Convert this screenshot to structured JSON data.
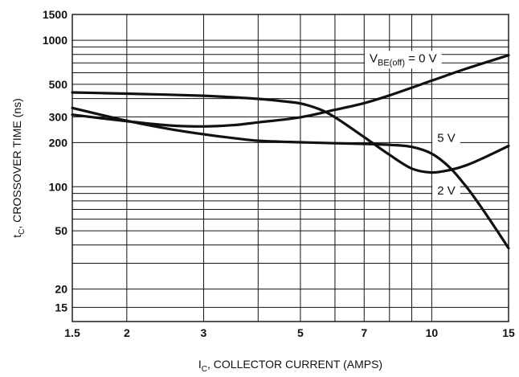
{
  "chart_data": {
    "type": "line",
    "x_scale": "log",
    "y_scale": "log",
    "xlim": [
      1.5,
      15
    ],
    "ylim": [
      12,
      1500
    ],
    "grid": true,
    "xlabel": {
      "main": "I",
      "sub": "C",
      "rest": ", COLLECTOR CURRENT (AMPS)"
    },
    "ylabel": {
      "main": "t",
      "sub": "C",
      "rest": ", CROSSOVER TIME (ns)"
    },
    "x_ticks": [
      {
        "value": 1.5,
        "label": "1.5"
      },
      {
        "value": 2,
        "label": "2"
      },
      {
        "value": 3,
        "label": "3"
      },
      {
        "value": 5,
        "label": "5"
      },
      {
        "value": 7,
        "label": "7"
      },
      {
        "value": 10,
        "label": "10"
      },
      {
        "value": 15,
        "label": "15"
      }
    ],
    "y_ticks": [
      {
        "value": 15,
        "label": "15"
      },
      {
        "value": 20,
        "label": "20"
      },
      {
        "value": 50,
        "label": "50"
      },
      {
        "value": 100,
        "label": "100"
      },
      {
        "value": 200,
        "label": "200"
      },
      {
        "value": 300,
        "label": "300"
      },
      {
        "value": 500,
        "label": "500"
      },
      {
        "value": 1000,
        "label": "1000"
      },
      {
        "value": 1500,
        "label": "1500"
      }
    ],
    "x_grid": [
      1.5,
      2,
      3,
      4,
      5,
      6,
      7,
      8,
      9,
      10,
      15
    ],
    "y_grid": [
      15,
      20,
      30,
      40,
      50,
      60,
      70,
      80,
      90,
      100,
      200,
      300,
      400,
      500,
      600,
      700,
      800,
      900,
      1000,
      1500
    ],
    "series": [
      {
        "label_parts": {
          "main": "V",
          "sub": "BE(off)",
          "rest": " = 0 V"
        },
        "label_at": {
          "x": 8.6,
          "y": 755
        },
        "points": [
          [
            1.5,
            310
          ],
          [
            2,
            280
          ],
          [
            2.5,
            262
          ],
          [
            3,
            258
          ],
          [
            3.5,
            263
          ],
          [
            4,
            275
          ],
          [
            5,
            298
          ],
          [
            6,
            335
          ],
          [
            7,
            372
          ],
          [
            8,
            420
          ],
          [
            10,
            530
          ],
          [
            12,
            640
          ],
          [
            15,
            790
          ]
        ]
      },
      {
        "label": "5 V",
        "label_at": {
          "x": 10.8,
          "y": 215
        },
        "points": [
          [
            1.5,
            440
          ],
          [
            2,
            432
          ],
          [
            2.5,
            425
          ],
          [
            3,
            418
          ],
          [
            3.5,
            408
          ],
          [
            4,
            398
          ],
          [
            4.5,
            385
          ],
          [
            5,
            370
          ],
          [
            5.5,
            340
          ],
          [
            6,
            298
          ],
          [
            7,
            218
          ],
          [
            8,
            165
          ],
          [
            9,
            133
          ],
          [
            10,
            125
          ],
          [
            11,
            130
          ],
          [
            12,
            140
          ],
          [
            13,
            155
          ],
          [
            15,
            190
          ]
        ]
      },
      {
        "label": "2 V",
        "label_at": {
          "x": 10.8,
          "y": 94
        },
        "points": [
          [
            1.5,
            345
          ],
          [
            2,
            282
          ],
          [
            2.5,
            248
          ],
          [
            3,
            228
          ],
          [
            3.5,
            215
          ],
          [
            4,
            206
          ],
          [
            5,
            201
          ],
          [
            6,
            198
          ],
          [
            7,
            196
          ],
          [
            8,
            193
          ],
          [
            9,
            187
          ],
          [
            10,
            168
          ],
          [
            11,
            135
          ],
          [
            12,
            100
          ],
          [
            13,
            72
          ],
          [
            14,
            52
          ],
          [
            15,
            38
          ]
        ]
      }
    ]
  }
}
